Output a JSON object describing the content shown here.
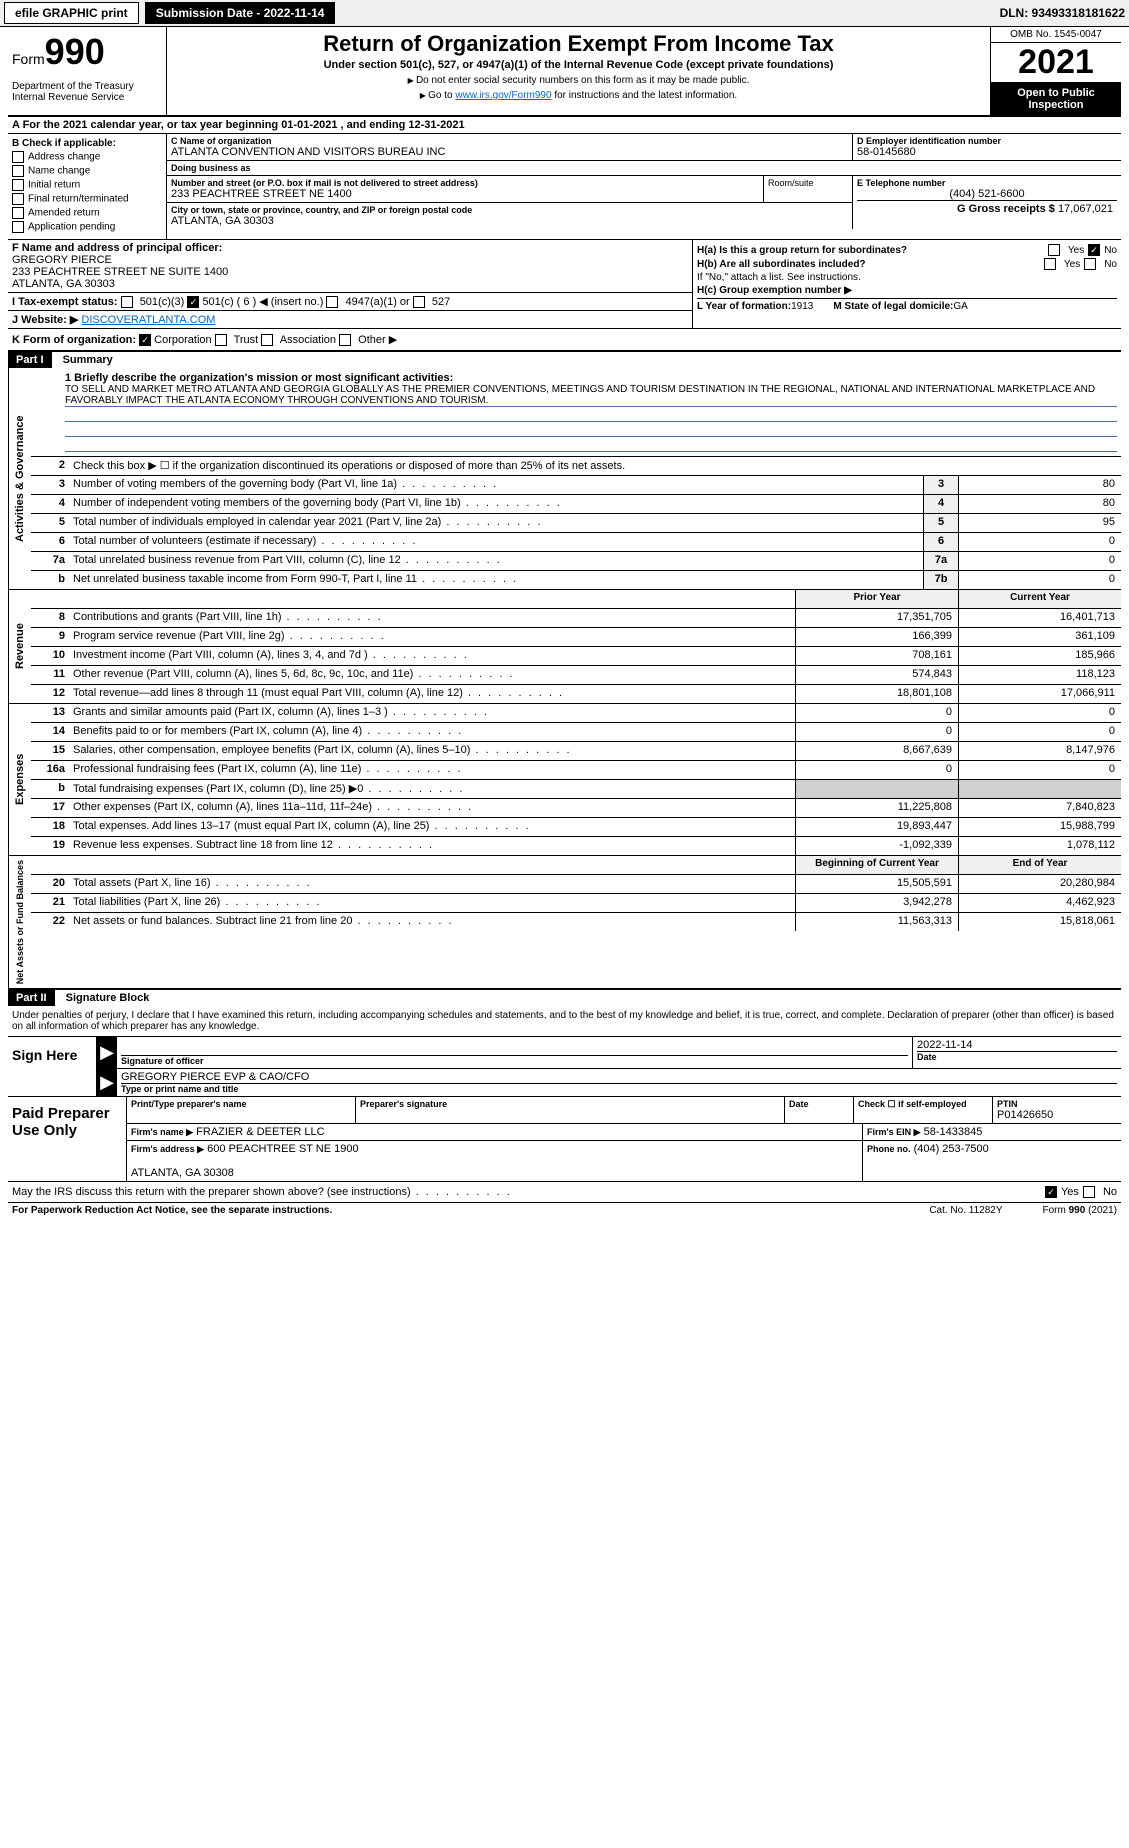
{
  "topbar": {
    "efile": "efile GRAPHIC print",
    "submission_label": "Submission Date - 2022-11-14",
    "dln": "DLN: 93493318181622"
  },
  "header": {
    "form_prefix": "Form",
    "form_num": "990",
    "title": "Return of Organization Exempt From Income Tax",
    "subtitle": "Under section 501(c), 527, or 4947(a)(1) of the Internal Revenue Code (except private foundations)",
    "instr1": "Do not enter social security numbers on this form as it may be made public.",
    "instr2_pre": "Go to ",
    "instr2_link": "www.irs.gov/Form990",
    "instr2_post": " for instructions and the latest information.",
    "dept": "Department of the Treasury\nInternal Revenue Service",
    "omb": "OMB No. 1545-0047",
    "year": "2021",
    "open_pub": "Open to Public Inspection"
  },
  "row_a": "A For the 2021 calendar year, or tax year beginning 01-01-2021       , and ending 12-31-2021",
  "section_b": {
    "label": "B Check if applicable:",
    "items": [
      "Address change",
      "Name change",
      "Initial return",
      "Final return/terminated",
      "Amended return",
      "Application pending"
    ]
  },
  "section_c": {
    "name_label": "C Name of organization",
    "name": "ATLANTA CONVENTION AND VISITORS BUREAU INC",
    "dba_label": "Doing business as",
    "street_label": "Number and street (or P.O. box if mail is not delivered to street address)",
    "street": "233 PEACHTREE STREET NE 1400",
    "room_label": "Room/suite",
    "city_label": "City or town, state or province, country, and ZIP or foreign postal code",
    "city": "ATLANTA, GA  30303"
  },
  "section_d": {
    "label": "D Employer identification number",
    "ein": "58-0145680"
  },
  "section_e": {
    "label": "E Telephone number",
    "phone": "(404) 521-6600"
  },
  "section_g": {
    "label": "G Gross receipts $",
    "val": "17,067,021"
  },
  "section_f": {
    "label": "F  Name and address of principal officer:",
    "name": "GREGORY PIERCE",
    "addr": "233 PEACHTREE STREET NE SUITE 1400\nATLANTA, GA  30303"
  },
  "section_h": {
    "a": "H(a)  Is this a group return for subordinates?",
    "b": "H(b)  Are all subordinates included?",
    "b_note": "If \"No,\" attach a list. See instructions.",
    "c": "H(c)  Group exemption number ▶",
    "yes": "Yes",
    "no": "No"
  },
  "section_i": {
    "label": "I    Tax-exempt status:",
    "opts": [
      "501(c)(3)",
      "501(c) ( 6 ) ◀ (insert no.)",
      "4947(a)(1) or",
      "527"
    ]
  },
  "section_j": {
    "label": "J   Website: ▶",
    "val": "DISCOVERATLANTA.COM"
  },
  "section_k": {
    "label": "K Form of organization:",
    "opts": [
      "Corporation",
      "Trust",
      "Association",
      "Other ▶"
    ]
  },
  "section_l": {
    "label": "L Year of formation:",
    "val": "1913"
  },
  "section_m": {
    "label": "M State of legal domicile:",
    "val": "GA"
  },
  "parts": {
    "p1_hdr": "Part I",
    "p1_title": "Summary",
    "p2_hdr": "Part II",
    "p2_title": "Signature Block"
  },
  "side_tabs": {
    "ag": "Activities & Governance",
    "rev": "Revenue",
    "exp": "Expenses",
    "na": "Net Assets or\nFund Balances"
  },
  "p1": {
    "l1_label": "1  Briefly describe the organization's mission or most significant activities:",
    "l1_text": "TO SELL AND MARKET METRO ATLANTA AND GEORGIA GLOBALLY AS THE PREMIER CONVENTIONS, MEETINGS AND TOURISM DESTINATION IN THE REGIONAL, NATIONAL AND INTERNATIONAL MARKETPLACE AND FAVORABLY IMPACT THE ATLANTA ECONOMY THROUGH CONVENTIONS AND TOURISM.",
    "l2": "Check this box ▶ ☐ if the organization discontinued its operations or disposed of more than 25% of its net assets.",
    "lines_ag": [
      {
        "n": "3",
        "desc": "Number of voting members of the governing body (Part VI, line 1a)",
        "box": "3",
        "v": "80"
      },
      {
        "n": "4",
        "desc": "Number of independent voting members of the governing body (Part VI, line 1b)",
        "box": "4",
        "v": "80"
      },
      {
        "n": "5",
        "desc": "Total number of individuals employed in calendar year 2021 (Part V, line 2a)",
        "box": "5",
        "v": "95"
      },
      {
        "n": "6",
        "desc": "Total number of volunteers (estimate if necessary)",
        "box": "6",
        "v": "0"
      },
      {
        "n": "7a",
        "desc": "Total unrelated business revenue from Part VIII, column (C), line 12",
        "box": "7a",
        "v": "0"
      },
      {
        "n": "b",
        "desc": "Net unrelated business taxable income from Form 990-T, Part I, line 11",
        "box": "7b",
        "v": "0"
      }
    ],
    "col_prior": "Prior Year",
    "col_curr": "Current Year",
    "lines_rev": [
      {
        "n": "8",
        "desc": "Contributions and grants (Part VIII, line 1h)",
        "p": "17,351,705",
        "c": "16,401,713"
      },
      {
        "n": "9",
        "desc": "Program service revenue (Part VIII, line 2g)",
        "p": "166,399",
        "c": "361,109"
      },
      {
        "n": "10",
        "desc": "Investment income (Part VIII, column (A), lines 3, 4, and 7d )",
        "p": "708,161",
        "c": "185,966"
      },
      {
        "n": "11",
        "desc": "Other revenue (Part VIII, column (A), lines 5, 6d, 8c, 9c, 10c, and 11e)",
        "p": "574,843",
        "c": "118,123"
      },
      {
        "n": "12",
        "desc": "Total revenue—add lines 8 through 11 (must equal Part VIII, column (A), line 12)",
        "p": "18,801,108",
        "c": "17,066,911"
      }
    ],
    "lines_exp": [
      {
        "n": "13",
        "desc": "Grants and similar amounts paid (Part IX, column (A), lines 1–3 )",
        "p": "0",
        "c": "0"
      },
      {
        "n": "14",
        "desc": "Benefits paid to or for members (Part IX, column (A), line 4)",
        "p": "0",
        "c": "0"
      },
      {
        "n": "15",
        "desc": "Salaries, other compensation, employee benefits (Part IX, column (A), lines 5–10)",
        "p": "8,667,639",
        "c": "8,147,976"
      },
      {
        "n": "16a",
        "desc": "Professional fundraising fees (Part IX, column (A), line 11e)",
        "p": "0",
        "c": "0"
      },
      {
        "n": "b",
        "desc": "Total fundraising expenses (Part IX, column (D), line 25) ▶0",
        "p": "",
        "c": "",
        "shaded": true
      },
      {
        "n": "17",
        "desc": "Other expenses (Part IX, column (A), lines 11a–11d, 11f–24e)",
        "p": "11,225,808",
        "c": "7,840,823"
      },
      {
        "n": "18",
        "desc": "Total expenses. Add lines 13–17 (must equal Part IX, column (A), line 25)",
        "p": "19,893,447",
        "c": "15,988,799"
      },
      {
        "n": "19",
        "desc": "Revenue less expenses. Subtract line 18 from line 12",
        "p": "-1,092,339",
        "c": "1,078,112"
      }
    ],
    "col_begin": "Beginning of Current Year",
    "col_end": "End of Year",
    "lines_na": [
      {
        "n": "20",
        "desc": "Total assets (Part X, line 16)",
        "p": "15,505,591",
        "c": "20,280,984"
      },
      {
        "n": "21",
        "desc": "Total liabilities (Part X, line 26)",
        "p": "3,942,278",
        "c": "4,462,923"
      },
      {
        "n": "22",
        "desc": "Net assets or fund balances. Subtract line 21 from line 20",
        "p": "11,563,313",
        "c": "15,818,061"
      }
    ]
  },
  "sig": {
    "penalty": "Under penalties of perjury, I declare that I have examined this return, including accompanying schedules and statements, and to the best of my knowledge and belief, it is true, correct, and complete. Declaration of preparer (other than officer) is based on all information of which preparer has any knowledge.",
    "sign_here": "Sign Here",
    "sig_of_officer": "Signature of officer",
    "date_val": "2022-11-14",
    "date_lbl": "Date",
    "officer_name": "GREGORY PIERCE  EVP & CAO/CFO",
    "type_name": "Type or print name and title",
    "paid": "Paid Preparer Use Only",
    "prep_name_lbl": "Print/Type preparer's name",
    "prep_sig_lbl": "Preparer's signature",
    "check_self": "Check ☐ if self-employed",
    "ptin_lbl": "PTIN",
    "ptin": "P01426650",
    "firm_name_lbl": "Firm's name      ▶",
    "firm_name": "FRAZIER & DEETER LLC",
    "firm_ein_lbl": "Firm's EIN ▶",
    "firm_ein": "58-1433845",
    "firm_addr_lbl": "Firm's address ▶",
    "firm_addr": "600 PEACHTREE ST NE 1900\n\nATLANTA, GA  30308",
    "phone_lbl": "Phone no.",
    "phone": "(404) 253-7500",
    "may_irs": "May the IRS discuss this return with the preparer shown above? (see instructions)",
    "yes": "Yes",
    "no": "No"
  },
  "footer": {
    "left": "For Paperwork Reduction Act Notice, see the separate instructions.",
    "mid": "Cat. No. 11282Y",
    "right": "Form 990 (2021)"
  },
  "colors": {
    "link": "#0066cc",
    "rule": "#4a6aa8"
  }
}
